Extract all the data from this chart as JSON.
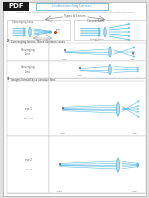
{
  "bg_color": "#e0e0e0",
  "page_color": "#ffffff",
  "page_border": "#aaaaaa",
  "pdf_bg": "#1a1a1a",
  "pdf_text": "#ffffff",
  "header_border": "#7ab8d4",
  "header_text": "#5a9ab8",
  "section_text": "#444444",
  "lens_fill": "#a8d8f0",
  "lens_edge": "#4aA0c8",
  "ray_color": "#5ab8e0",
  "arrow_color": "#888888",
  "diagram_border": "#bbbbbb",
  "box_fill": "#ffffff",
  "label_text": "#555555",
  "small_text": "#666666",
  "line_color": "#5ab8e0",
  "note_text": "#777777"
}
